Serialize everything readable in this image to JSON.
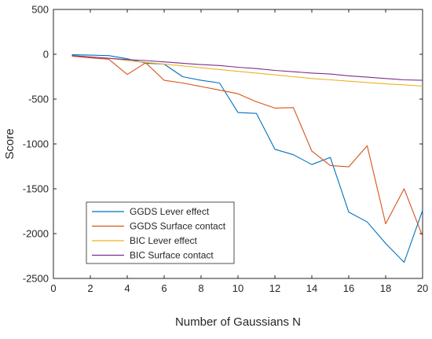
{
  "chart_data": {
    "type": "line",
    "xlabel": "Number of Gaussians N",
    "ylabel": "Score",
    "xlim": [
      0,
      20
    ],
    "ylim": [
      -2500,
      500
    ],
    "xticks": [
      0,
      2,
      4,
      6,
      8,
      10,
      12,
      14,
      16,
      18,
      20
    ],
    "yticks": [
      500,
      0,
      -500,
      -1000,
      -1500,
      -2000,
      -2500
    ],
    "grid": false,
    "legend_position": "lower-left",
    "x": [
      1,
      2,
      3,
      4,
      5,
      6,
      7,
      8,
      9,
      10,
      11,
      12,
      13,
      14,
      15,
      16,
      17,
      18,
      19,
      20
    ],
    "series": [
      {
        "name": "GGDS Lever effect",
        "color": "#0072bd",
        "values": [
          -5,
          -10,
          -15,
          -50,
          -100,
          -110,
          -250,
          -290,
          -320,
          -650,
          -660,
          -1060,
          -1120,
          -1230,
          -1150,
          -1760,
          -1870,
          -2110,
          -2320,
          -1740
        ]
      },
      {
        "name": "GGDS Surface contact",
        "color": "#d95319",
        "values": [
          -20,
          -40,
          -55,
          -225,
          -95,
          -290,
          -320,
          -360,
          -400,
          -440,
          -530,
          -600,
          -595,
          -1080,
          -1240,
          -1255,
          -1020,
          -1890,
          -1500,
          -2030
        ]
      },
      {
        "name": "BIC Lever effect",
        "color": "#edb120",
        "values": [
          -15,
          -30,
          -45,
          -70,
          -90,
          -110,
          -130,
          -150,
          -170,
          -190,
          -210,
          -230,
          -250,
          -270,
          -285,
          -300,
          -315,
          -330,
          -340,
          -355
        ]
      },
      {
        "name": "BIC Surface contact",
        "color": "#7e2f8e",
        "values": [
          -15,
          -30,
          -45,
          -60,
          -70,
          -85,
          -100,
          -115,
          -125,
          -145,
          -160,
          -180,
          -195,
          -210,
          -220,
          -240,
          -255,
          -270,
          -285,
          -290
        ]
      }
    ]
  }
}
